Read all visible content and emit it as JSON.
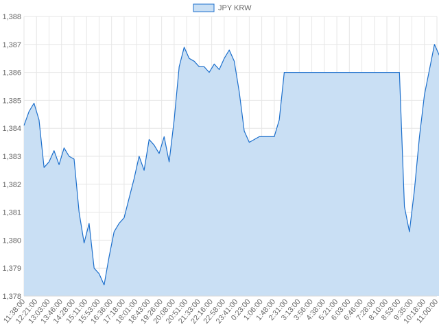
{
  "chart_data": {
    "type": "area",
    "title": "",
    "xlabel": "",
    "ylabel": "",
    "legend": {
      "position": "top-center"
    },
    "grid": true,
    "ylim": [
      1378,
      1388
    ],
    "y_ticks": [
      "1,378",
      "1,379",
      "1,380",
      "1,381",
      "1,382",
      "1,383",
      "1,384",
      "1,385",
      "1,386",
      "1,387",
      "1,388"
    ],
    "x_ticks": [
      "11:38:00",
      "12:21:00",
      "13:03:00",
      "13:46:00",
      "14:28:00",
      "15:11:00",
      "15:53:00",
      "16:36:00",
      "17:18:00",
      "18:01:00",
      "18:43:00",
      "19:26:00",
      "20:08:00",
      "20:51:00",
      "21:33:00",
      "22:16:00",
      "22:58:00",
      "23:41:00",
      "0:23:00",
      "1:06:00",
      "1:48:00",
      "2:31:00",
      "3:13:00",
      "3:56:00",
      "4:38:00",
      "5:21:00",
      "6:03:00",
      "6:46:00",
      "7:28:00",
      "8:10:00",
      "8:53:00",
      "9:35:00",
      "10:18:00",
      "11:00:00"
    ],
    "colors": {
      "line": "#1c6fcc",
      "fill": "#c9dff4",
      "grid": "#e6e6e6"
    },
    "series": [
      {
        "name": "JPY KRW",
        "x": [
          0,
          0.4,
          0.8,
          1.2,
          1.6,
          2,
          2.4,
          2.8,
          3.2,
          3.6,
          4,
          4.4,
          4.8,
          5.2,
          5.6,
          6,
          6.4,
          6.8,
          7.2,
          7.6,
          8,
          8.4,
          8.8,
          9.2,
          9.6,
          10,
          10.4,
          10.8,
          11.2,
          11.6,
          12,
          12.4,
          12.8,
          13.2,
          13.6,
          14,
          14.4,
          14.8,
          15.2,
          15.6,
          16,
          16.4,
          16.8,
          17.2,
          17.6,
          18,
          18.4,
          18.8,
          19.2,
          19.6,
          20,
          20.4,
          20.8,
          21.2,
          21.6,
          22,
          22.4,
          22.8,
          23.2,
          23.6,
          24,
          24.4,
          24.8,
          25.2,
          25.6,
          26,
          26.4,
          26.8,
          27.2,
          27.6,
          27.8,
          28,
          28.4,
          28.8,
          29.2,
          29.6,
          29.8,
          30,
          30.4,
          30.8,
          31.2,
          31.6,
          32,
          32.4,
          32.8,
          33.2,
          33.6,
          34
        ],
        "values": [
          1384.1,
          1384.6,
          1384.9,
          1384.3,
          1382.6,
          1382.8,
          1383.2,
          1382.7,
          1383.3,
          1383.0,
          1382.9,
          1381.0,
          1379.9,
          1380.6,
          1379.0,
          1378.8,
          1378.4,
          1379.4,
          1380.3,
          1380.6,
          1380.8,
          1381.5,
          1382.2,
          1383.0,
          1382.5,
          1383.6,
          1383.4,
          1383.1,
          1383.7,
          1382.8,
          1384.3,
          1386.2,
          1386.9,
          1386.5,
          1386.4,
          1386.2,
          1386.2,
          1386.0,
          1386.3,
          1386.1,
          1386.5,
          1386.8,
          1386.4,
          1385.3,
          1383.9,
          1383.5,
          1383.6,
          1383.7,
          1383.7,
          1383.7,
          1383.7,
          1384.3,
          1386.0,
          1386.0,
          1386.0,
          1386.0,
          1386.0,
          1386.0,
          1386.0,
          1386.0,
          1386.0,
          1386.0,
          1386.0,
          1386.0,
          1386.0,
          1386.0,
          1386.0,
          1386.0,
          1386.0,
          1386.0,
          1386.0,
          1386.0,
          1386.0,
          1386.0,
          1386.0,
          1386.0,
          1386.0,
          1386.0,
          1381.2,
          1380.3,
          1381.8,
          1383.7,
          1385.2,
          1386.1,
          1387.0,
          1386.6,
          1386.9,
          1386.9
        ]
      }
    ]
  }
}
